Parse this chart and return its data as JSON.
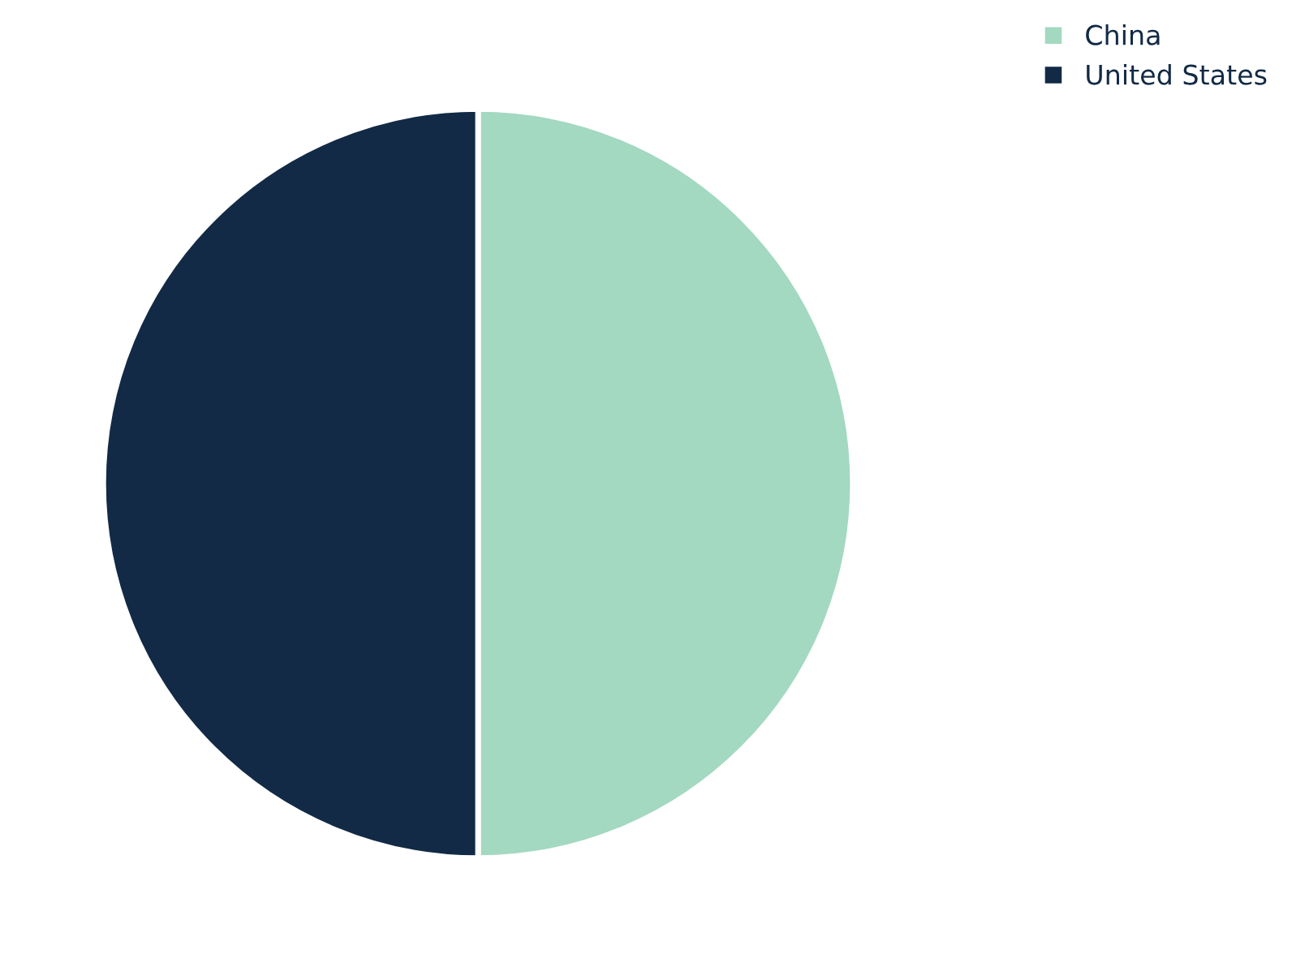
{
  "chart_data": {
    "type": "pie",
    "categories": [
      "China",
      "United States"
    ],
    "values": [
      50,
      50
    ],
    "colors": [
      "#a3d8c1",
      "#122a45"
    ],
    "legend": "top right"
  }
}
